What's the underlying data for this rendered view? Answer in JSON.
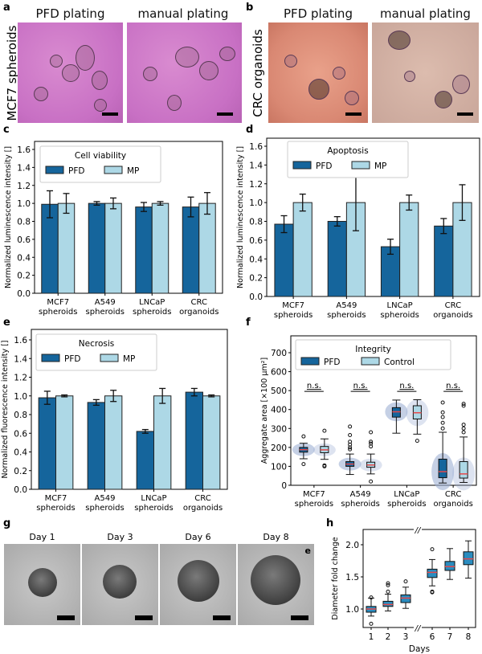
{
  "panels": {
    "a": "a",
    "b": "b",
    "c": "c",
    "d": "d",
    "e": "e",
    "f": "f",
    "g": "g",
    "h": "h"
  },
  "panel_a": {
    "col1": "PFD plating",
    "col2": "manual plating",
    "row": "MCF7 spheroids"
  },
  "panel_b": {
    "col1": "PFD plating",
    "col2": "manual plating",
    "row": "CRC organoids"
  },
  "panel_g": {
    "days": [
      "Day 1",
      "Day 3",
      "Day 6",
      "Day 8"
    ],
    "inset_letter": "e"
  },
  "colors": {
    "pfd": "#15659c",
    "mp": "#add8e6",
    "h_box": "#2a8cbf",
    "median": "#e8474a",
    "violin": "#9fb0d3"
  },
  "chart_data": [
    {
      "id": "c",
      "type": "bar",
      "legend_title": "Cell viability",
      "legend": [
        "PFD",
        "MP"
      ],
      "ylabel": "Normalized luminescence intensity []",
      "ylim": [
        0,
        1.7
      ],
      "yticks": [
        0.0,
        0.2,
        0.4,
        0.6,
        0.8,
        1.0,
        1.2,
        1.4,
        1.6
      ],
      "categories": [
        [
          "MCF7",
          "spheroids"
        ],
        [
          "A549",
          "spheroids"
        ],
        [
          "LNCaP",
          "spheroids"
        ],
        [
          "CRC",
          "organoids"
        ]
      ],
      "series": [
        {
          "name": "PFD",
          "values": [
            0.99,
            1.0,
            0.96,
            0.96
          ],
          "errors": [
            0.15,
            0.02,
            0.05,
            0.11
          ]
        },
        {
          "name": "MP",
          "values": [
            1.0,
            1.0,
            1.0,
            1.0
          ],
          "errors": [
            0.11,
            0.06,
            0.02,
            0.12
          ]
        }
      ]
    },
    {
      "id": "d",
      "type": "bar",
      "legend_title": "Apoptosis",
      "legend": [
        "PFD",
        "MP"
      ],
      "ylabel": "Normalized luminescence intensity []",
      "ylim": [
        0,
        1.7
      ],
      "yticks": [
        0.0,
        0.2,
        0.4,
        0.6,
        0.8,
        1.0,
        1.2,
        1.4,
        1.6
      ],
      "categories": [
        [
          "MCF7",
          "spheroids"
        ],
        [
          "A549",
          "spheroids"
        ],
        [
          "LNCaP",
          "spheroids"
        ],
        [
          "CRC",
          "organoids"
        ]
      ],
      "series": [
        {
          "name": "PFD",
          "values": [
            0.77,
            0.8,
            0.53,
            0.75
          ],
          "errors": [
            0.09,
            0.05,
            0.08,
            0.08
          ]
        },
        {
          "name": "MP",
          "values": [
            1.0,
            1.0,
            1.0,
            1.0
          ],
          "errors": [
            0.09,
            0.3,
            0.08,
            0.19
          ]
        }
      ]
    },
    {
      "id": "e",
      "type": "bar",
      "legend_title": "Necrosis",
      "legend": [
        "PFD",
        "MP"
      ],
      "ylabel": "Normalized fluorescence intensity []",
      "ylim": [
        0,
        1.7
      ],
      "yticks": [
        0.0,
        0.2,
        0.4,
        0.6,
        0.8,
        1.0,
        1.2,
        1.4,
        1.6
      ],
      "categories": [
        [
          "MCF7",
          "spheroids"
        ],
        [
          "A549",
          "spheroids"
        ],
        [
          "LNCaP",
          "spheroids"
        ],
        [
          "CRC",
          "organoids"
        ]
      ],
      "series": [
        {
          "name": "PFD",
          "values": [
            0.98,
            0.93,
            0.62,
            1.04
          ],
          "errors": [
            0.07,
            0.03,
            0.02,
            0.04
          ]
        },
        {
          "name": "MP",
          "values": [
            1.0,
            1.0,
            1.0,
            1.0
          ],
          "errors": [
            0.01,
            0.06,
            0.08,
            0.01
          ]
        }
      ]
    },
    {
      "id": "f",
      "type": "box",
      "legend_title": "Integrity",
      "legend": [
        "PFD",
        "Control"
      ],
      "ylabel": "Aggregate area [×100 µm²]",
      "ylim": [
        0,
        780
      ],
      "yticks": [
        0,
        100,
        200,
        300,
        400,
        500,
        600,
        700
      ],
      "categories": [
        [
          "MCF7",
          "spheroids"
        ],
        [
          "A549",
          "spheroids"
        ],
        [
          "LNCaP",
          "spheroids"
        ],
        [
          "CRC",
          "organoids"
        ]
      ],
      "annotations": [
        "n.s.",
        "n.s.",
        "n.s.",
        "n.s."
      ],
      "series": [
        {
          "name": "PFD",
          "boxes": [
            {
              "q1": 175,
              "median": 188,
              "q3": 200,
              "low": 140,
              "high": 222,
              "outliers": [
                258,
                112
              ]
            },
            {
              "q1": 100,
              "median": 112,
              "q3": 125,
              "low": 57,
              "high": 165,
              "outliers": [
                310,
                265,
                230,
                215,
                200,
                190
              ]
            },
            {
              "q1": 360,
              "median": 388,
              "q3": 410,
              "low": 275,
              "high": 450,
              "outliers": []
            },
            {
              "q1": 40,
              "median": 72,
              "q3": 138,
              "low": 12,
              "high": 280,
              "outliers": [
                300,
                330,
                360,
                385,
                437
              ]
            }
          ]
        },
        {
          "name": "Control",
          "boxes": [
            {
              "q1": 172,
              "median": 187,
              "q3": 205,
              "low": 137,
              "high": 245,
              "outliers": [
                288,
                105,
                100
              ]
            },
            {
              "q1": 95,
              "median": 107,
              "q3": 122,
              "low": 60,
              "high": 165,
              "outliers": [
                280,
                230,
                220,
                205,
                20
              ]
            },
            {
              "q1": 350,
              "median": 383,
              "q3": 420,
              "low": 270,
              "high": 452,
              "outliers": [
                235
              ]
            },
            {
              "q1": 38,
              "median": 60,
              "q3": 125,
              "low": 15,
              "high": 255,
              "outliers": [
                280,
                300,
                320,
                420,
                430
              ]
            }
          ]
        }
      ]
    },
    {
      "id": "h",
      "type": "box",
      "xlabel": "Days",
      "ylabel": "Diameter fold change",
      "ylim": [
        0.7,
        2.25
      ],
      "yticks": [
        1.0,
        1.5,
        2.0
      ],
      "axis_break": "//",
      "categories": [
        "1",
        "2",
        "3",
        "6",
        "7",
        "8"
      ],
      "boxes": [
        {
          "q1": 0.95,
          "median": 1.0,
          "q3": 1.04,
          "low": 0.89,
          "high": 1.17,
          "outliers": [
            0.77,
            1.18
          ]
        },
        {
          "q1": 1.04,
          "median": 1.07,
          "q3": 1.12,
          "low": 0.97,
          "high": 1.23,
          "outliers": [
            1.27,
            1.37,
            1.4
          ]
        },
        {
          "q1": 1.1,
          "median": 1.17,
          "q3": 1.22,
          "low": 1.01,
          "high": 1.34,
          "outliers": [
            1.43
          ]
        },
        {
          "q1": 1.49,
          "median": 1.57,
          "q3": 1.62,
          "low": 1.36,
          "high": 1.77,
          "outliers": [
            1.93,
            1.27,
            1.26
          ]
        },
        {
          "q1": 1.6,
          "median": 1.66,
          "q3": 1.74,
          "low": 1.46,
          "high": 1.94,
          "outliers": []
        },
        {
          "q1": 1.69,
          "median": 1.78,
          "q3": 1.89,
          "low": 1.48,
          "high": 2.06,
          "outliers": []
        }
      ]
    }
  ]
}
